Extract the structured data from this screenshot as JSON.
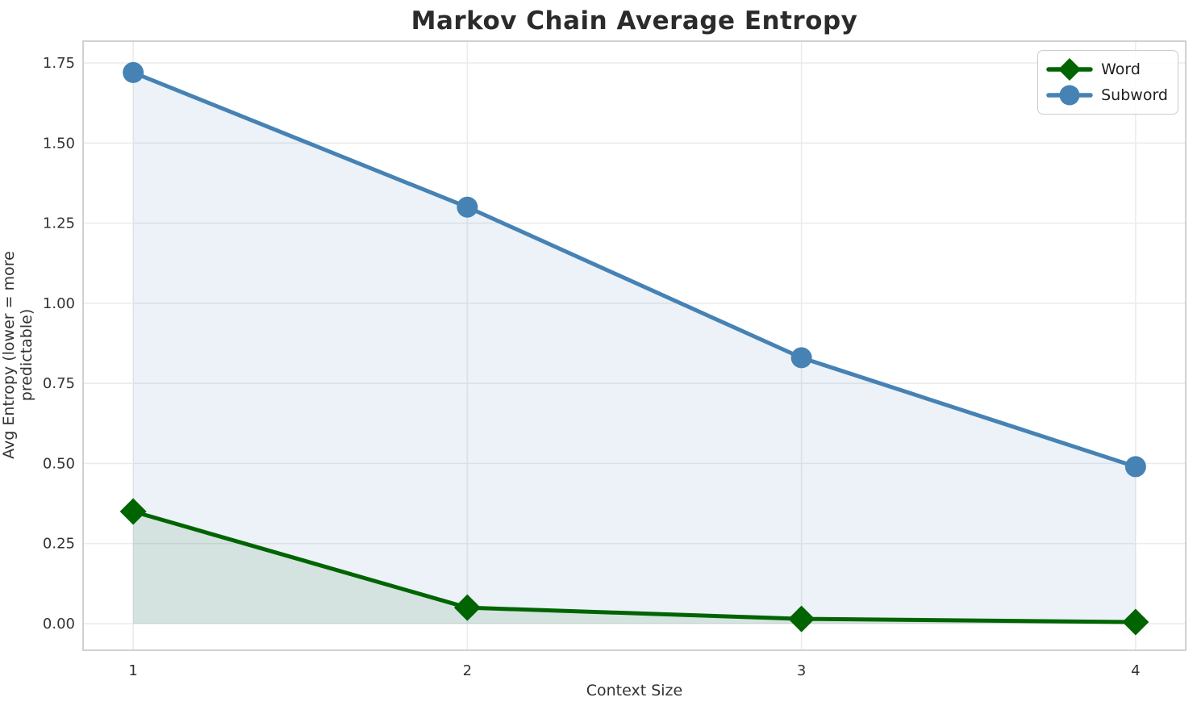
{
  "chart_data": {
    "type": "line",
    "title": "Markov Chain Average Entropy",
    "xlabel": "Context Size",
    "ylabel": "Avg Entropy (lower = more predictable)",
    "x": [
      1,
      2,
      3,
      4
    ],
    "xtick_labels": [
      "1",
      "2",
      "3",
      "4"
    ],
    "yticks": [
      0.0,
      0.25,
      0.5,
      0.75,
      1.0,
      1.25,
      1.5,
      1.75
    ],
    "ytick_labels": [
      "0.00",
      "0.25",
      "0.50",
      "0.75",
      "1.00",
      "1.25",
      "1.50",
      "1.75"
    ],
    "xlim": [
      0.85,
      4.15
    ],
    "ylim": [
      -0.083,
      1.818
    ],
    "grid": true,
    "fill_baseline": 0,
    "series": [
      {
        "name": "Word",
        "color": "#006400",
        "marker": "diamond",
        "values": [
          0.35,
          0.05,
          0.015,
          0.005
        ],
        "fill_to_baseline": true,
        "fill_alpha": 0.1
      },
      {
        "name": "Subword",
        "color": "#4682b4",
        "marker": "circle",
        "values": [
          1.72,
          1.3,
          0.83,
          0.49
        ],
        "fill_to_baseline": true,
        "fill_alpha": 0.1
      }
    ],
    "legend": {
      "position": "upper right",
      "entries": [
        "Word",
        "Subword"
      ]
    },
    "style": {
      "grid_color": "#ebebeb",
      "spine_color": "#cccccc",
      "tick_text_color": "#333333",
      "line_width": 5
    }
  }
}
